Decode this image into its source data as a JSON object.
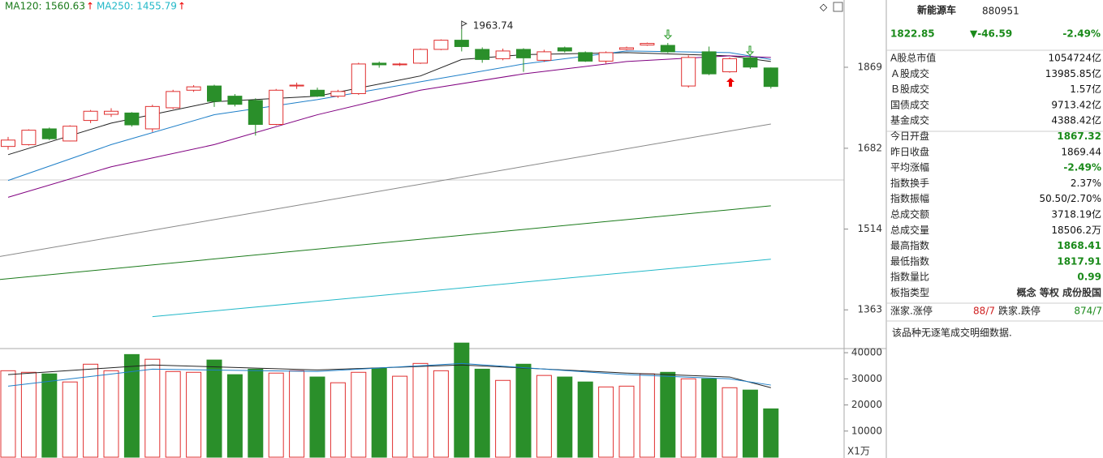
{
  "chart_data": [
    {
      "type": "candlestick",
      "log_scale": true,
      "ylim": [
        1296,
        2040
      ],
      "yticks": [
        1363,
        1514,
        1682,
        1869
      ],
      "categories": [
        null,
        null,
        null,
        null,
        null,
        null,
        null,
        null,
        null,
        null,
        null,
        null,
        null,
        null,
        null,
        null,
        null,
        null,
        null,
        null,
        null,
        null,
        null,
        null,
        null,
        null,
        null,
        null,
        null,
        null,
        null,
        null,
        null,
        null,
        null,
        null,
        null,
        null
      ],
      "open": [
        1686,
        1690,
        1725,
        1698,
        1744,
        1758,
        1761,
        1725,
        1773,
        1814,
        1824,
        1800,
        1790,
        1735,
        1824,
        1814,
        1800,
        1806,
        1879,
        1875,
        1879,
        1913,
        1936,
        1913,
        1890,
        1913,
        1886,
        1917,
        1905,
        1884,
        1913,
        1924,
        1923,
        1824,
        1907,
        1858,
        1892,
        1867.32
      ],
      "high": [
        1707,
        1724,
        1728,
        1733,
        1768,
        1772,
        1763,
        1780,
        1815,
        1826,
        1827,
        1805,
        1795,
        1817,
        1832,
        1820,
        1815,
        1880,
        1883,
        1880,
        1915,
        1938,
        1963.74,
        1918,
        1915,
        1916,
        1912,
        1920,
        1908,
        1908,
        1920,
        1930,
        1929,
        1898,
        1920,
        1893,
        1898,
        1868.41
      ],
      "low": [
        1679,
        1688,
        1700,
        1697,
        1738,
        1752,
        1730,
        1718,
        1770,
        1810,
        1775,
        1776,
        1710,
        1733,
        1817,
        1798,
        1796,
        1803,
        1868,
        1872,
        1877,
        1911,
        1908,
        1880,
        1886,
        1858,
        1882,
        1905,
        1882,
        1878,
        1911,
        1922,
        1904,
        1820,
        1850,
        1856,
        1865,
        1817.91
      ],
      "close": [
        1700,
        1722,
        1703,
        1731,
        1765,
        1765,
        1734,
        1776,
        1811,
        1822,
        1788,
        1781,
        1735,
        1814,
        1826,
        1800,
        1811,
        1877,
        1875,
        1877,
        1913,
        1936,
        1920,
        1888,
        1909,
        1892,
        1907,
        1909,
        1884,
        1905,
        1917,
        1928,
        1907,
        1893,
        1853,
        1890,
        1869.44,
        1822.85
      ],
      "up_color": "#e03030",
      "down_color": "#2a8f2a",
      "lines": [
        {
          "color": "#222222",
          "x": [
            0,
            5,
            10,
            15,
            20,
            22,
            25,
            30,
            35,
            37
          ],
          "values": [
            1668,
            1738,
            1787,
            1800,
            1848,
            1888,
            1900,
            1905,
            1897,
            1883
          ]
        },
        {
          "color": "#1e7fc8",
          "x": [
            0,
            5,
            10,
            15,
            20,
            25,
            30,
            35,
            37
          ],
          "values": [
            1613,
            1690,
            1757,
            1792,
            1834,
            1877,
            1909,
            1905,
            1888
          ]
        },
        {
          "color": "#800080",
          "x": [
            0,
            5,
            10,
            15,
            20,
            25,
            30,
            35,
            37
          ],
          "values": [
            1578,
            1642,
            1690,
            1757,
            1814,
            1853,
            1883,
            1897,
            1893
          ]
        },
        {
          "color": "#888888",
          "x": [
            -0.4,
            37
          ],
          "values": [
            1461,
            1736
          ]
        },
        {
          "name": "MA120: 1560.63",
          "arrow": "↑",
          "color": "#1a7a1a",
          "x": [
            -0.4,
            37
          ],
          "values": [
            1418,
            1560.63
          ]
        },
        {
          "name": "MA250: 1455.79",
          "arrow": "↑",
          "color": "#22b8c8",
          "x": [
            7,
            37
          ],
          "values": [
            1351,
            1455.79
          ]
        }
      ]
    },
    {
      "type": "bar",
      "ylim": [
        0,
        45000
      ],
      "yticks": [
        10000,
        20000,
        30000,
        40000
      ],
      "unit": "X1万",
      "values": [
        33100,
        32500,
        31900,
        28800,
        35600,
        33100,
        39300,
        37500,
        32800,
        32500,
        37200,
        31600,
        33700,
        32200,
        33100,
        30700,
        28500,
        32500,
        34100,
        31000,
        35900,
        33100,
        43700,
        33700,
        29400,
        35600,
        31300,
        30700,
        28800,
        26900,
        27200,
        31900,
        32500,
        30000,
        30000,
        26600,
        25700,
        18506.2
      ],
      "lines": [
        {
          "color": "#222222",
          "x": [
            0,
            7,
            15,
            22,
            30,
            35,
            37
          ],
          "values": [
            31600,
            35300,
            33400,
            35300,
            32200,
            30700,
            26600
          ]
        },
        {
          "color": "#1e7fc8",
          "x": [
            0,
            7,
            15,
            22,
            30,
            35,
            37
          ],
          "values": [
            27200,
            33700,
            32800,
            35900,
            31600,
            30000,
            27600
          ]
        }
      ]
    }
  ],
  "panel": {
    "name": "新能源车",
    "code": "880951",
    "price": "1822.85",
    "change": "▼-46.59",
    "pct": "-2.49%",
    "rows": [
      {
        "label": "A股总市值",
        "value": "1054724亿",
        "color": "#111"
      },
      {
        "label": "Ａ股成交",
        "value": "13985.85亿",
        "color": "#111"
      },
      {
        "label": "Ｂ股成交",
        "value": "1.57亿",
        "color": "#111"
      },
      {
        "label": "国债成交",
        "value": "9713.42亿",
        "color": "#111"
      },
      {
        "label": "基金成交",
        "value": "4388.42亿",
        "color": "#111"
      },
      {
        "label": "今日开盘",
        "value": "1867.32",
        "color": "#1a8a1a"
      },
      {
        "label": "昨日收盘",
        "value": "1869.44",
        "color": "#111"
      },
      {
        "label": "平均涨幅",
        "value": "-2.49%",
        "color": "#1a8a1a"
      },
      {
        "label": "指数换手",
        "value": "2.37%",
        "color": "#111"
      },
      {
        "label": "指数振幅",
        "value": "50.50/2.70%",
        "color": "#111"
      },
      {
        "label": "总成交额",
        "value": "3718.19亿",
        "color": "#111"
      },
      {
        "label": "总成交量",
        "value": "18506.2万",
        "color": "#111"
      },
      {
        "label": "最高指数",
        "value": "1868.41",
        "color": "#1a8a1a"
      },
      {
        "label": "最低指数",
        "value": "1817.91",
        "color": "#1a8a1a"
      },
      {
        "label": "指数量比",
        "value": "0.99",
        "color": "#1a8a1a"
      },
      {
        "label": "板指类型",
        "value": "概念 等权 成份股国",
        "color": "#333"
      }
    ],
    "breadth": {
      "up_label": "涨家.涨停",
      "up": "88/7",
      "down_label": "跌家.跌停",
      "down": "874/7"
    },
    "note": "该品种无逐笔成交明细数据."
  }
}
